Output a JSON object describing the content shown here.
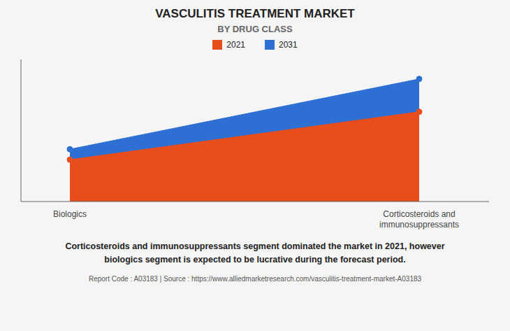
{
  "chart_data": {
    "type": "area",
    "title": "VASCULITIS TREATMENT MARKET",
    "subtitle": "BY DRUG CLASS",
    "categories": [
      "Biologics",
      "Corticosteroids and\nimmunosuppressants"
    ],
    "series": [
      {
        "name": "2021",
        "color": "#E84E1B",
        "values": [
          2.8,
          6.0
        ]
      },
      {
        "name": "2031",
        "color": "#2E6FD4",
        "values": [
          3.5,
          8.2
        ]
      }
    ],
    "ylim": [
      0,
      9.5
    ],
    "grid": false,
    "tick_labels": "x",
    "marker": "circle",
    "annotations": [
      "Corticosteroids and immunosuppressants segment dominated the market in 2021, however",
      "biologics segment is expected to be lucrative during the forecast period."
    ],
    "footer": "Report Code : A03183  |  Source : https://www.alliedmarketresearch.com/vasculitis-treatment-market-A03183"
  }
}
